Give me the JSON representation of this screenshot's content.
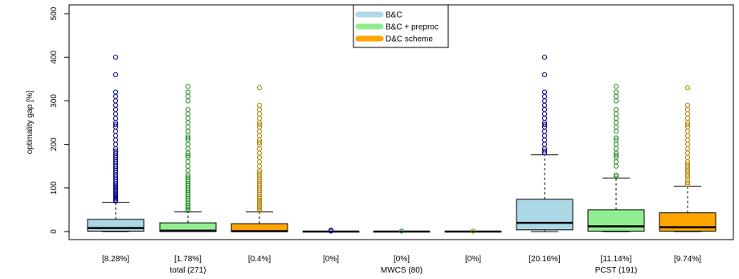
{
  "chart_data": {
    "type": "boxplot",
    "ylabel": "optimality gap [%]",
    "ylim": [
      0,
      500
    ],
    "yticks": [
      0,
      100,
      200,
      300,
      400,
      500
    ],
    "grid": false,
    "legend": {
      "placement": "top-center",
      "entries": [
        {
          "name": "B&C",
          "color": "#add8e6"
        },
        {
          "name": "B&C + preproc",
          "color": "#90ee90"
        },
        {
          "name": "D&C scheme",
          "color": "#ffa500"
        }
      ]
    },
    "groups": [
      {
        "label": "total (271)"
      },
      {
        "label": "MWCS (80)"
      },
      {
        "label": "PCST (191)"
      }
    ],
    "boxes": [
      {
        "group": 0,
        "series": "B&C",
        "bracket": "[8.28%]",
        "q1": 1,
        "median": 8,
        "q3": 28,
        "whisker_low": 0,
        "whisker_high": 67,
        "outliers": [
          70,
          72,
          75,
          78,
          80,
          83,
          86,
          90,
          93,
          96,
          100,
          103,
          106,
          110,
          115,
          120,
          125,
          130,
          135,
          140,
          145,
          150,
          155,
          160,
          165,
          170,
          175,
          180,
          185,
          190,
          200,
          210,
          220,
          230,
          240,
          245,
          250,
          260,
          270,
          280,
          290,
          300,
          310,
          320,
          360,
          400
        ]
      },
      {
        "group": 0,
        "series": "B&C + preproc",
        "bracket": "[1.78%]",
        "q1": 0,
        "median": 2,
        "q3": 20,
        "whisker_low": 0,
        "whisker_high": 45,
        "outliers": [
          48,
          52,
          56,
          60,
          65,
          70,
          75,
          80,
          85,
          90,
          95,
          100,
          105,
          110,
          115,
          120,
          125,
          130,
          140,
          150,
          160,
          170,
          175,
          180,
          190,
          200,
          210,
          215,
          220,
          230,
          240,
          250,
          260,
          270,
          280,
          300,
          310,
          320,
          333
        ]
      },
      {
        "group": 0,
        "series": "D&C scheme",
        "bracket": "[0.4%]",
        "q1": 0,
        "median": 1,
        "q3": 18,
        "whisker_low": 0,
        "whisker_high": 45,
        "outliers": [
          48,
          52,
          56,
          60,
          64,
          68,
          72,
          76,
          80,
          85,
          90,
          95,
          100,
          105,
          110,
          115,
          120,
          125,
          130,
          135,
          140,
          150,
          160,
          170,
          180,
          190,
          200,
          205,
          210,
          220,
          230,
          240,
          245,
          250,
          260,
          270,
          280,
          290,
          330
        ]
      },
      {
        "group": 1,
        "series": "B&C",
        "bracket": "[0%]",
        "q1": 0,
        "median": 0,
        "q3": 0,
        "whisker_low": 0,
        "whisker_high": 0,
        "outliers": [
          1,
          3
        ]
      },
      {
        "group": 1,
        "series": "B&C + preproc",
        "bracket": "[0%]",
        "q1": 0,
        "median": 0,
        "q3": 0,
        "whisker_low": 0,
        "whisker_high": 0,
        "outliers": [
          1
        ]
      },
      {
        "group": 1,
        "series": "D&C scheme",
        "bracket": "[0%]",
        "q1": 0,
        "median": 0,
        "q3": 0,
        "whisker_low": 0,
        "whisker_high": 0,
        "outliers": [
          1
        ]
      },
      {
        "group": 2,
        "series": "B&C",
        "bracket": "[20.16%]",
        "q1": 4,
        "median": 20,
        "q3": 74,
        "whisker_low": 0,
        "whisker_high": 176,
        "outliers": [
          180,
          185,
          190,
          200,
          210,
          220,
          230,
          240,
          245,
          250,
          260,
          270,
          280,
          290,
          300,
          310,
          320,
          360,
          400
        ]
      },
      {
        "group": 2,
        "series": "B&C + preproc",
        "bracket": "[11.14%]",
        "q1": 1,
        "median": 12,
        "q3": 50,
        "whisker_low": 0,
        "whisker_high": 123,
        "outliers": [
          126,
          130,
          150,
          160,
          170,
          175,
          180,
          190,
          200,
          210,
          215,
          230,
          240,
          250,
          260,
          270,
          280,
          300,
          310,
          320,
          333
        ]
      },
      {
        "group": 2,
        "series": "D&C scheme",
        "bracket": "[9.74%]",
        "q1": 1,
        "median": 10,
        "q3": 43,
        "whisker_low": 0,
        "whisker_high": 104,
        "outliers": [
          108,
          112,
          118,
          125,
          130,
          135,
          140,
          145,
          150,
          155,
          160,
          170,
          180,
          190,
          200,
          210,
          220,
          230,
          240,
          245,
          250,
          260,
          270,
          280,
          290,
          330
        ]
      }
    ]
  },
  "colors": {
    "B&C": {
      "fill": "#add8e6",
      "outlier": "#00008b"
    },
    "B&C + preproc": {
      "fill": "#90ee90",
      "outlier": "#228b22"
    },
    "D&C scheme": {
      "fill": "#ffa500",
      "outlier": "#b8860b"
    }
  }
}
